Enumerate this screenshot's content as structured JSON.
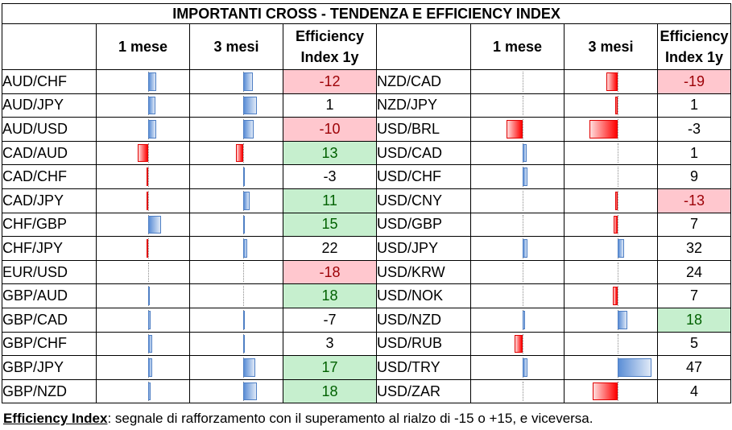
{
  "title": "IMPORTANTI CROSS - TENDENZA E EFFICIENCY INDEX",
  "headers": {
    "m1": "1 mese",
    "m3": "3 mesi",
    "eff_line1": "Efficiency",
    "eff_line2": "Index 1y"
  },
  "colors": {
    "positive_fill": "#c6efce",
    "positive_text": "#006100",
    "negative_fill": "#ffc7ce",
    "negative_text": "#9c0006",
    "bar_positive": "#5b8ed6",
    "bar_negative": "#ff0000"
  },
  "left": [
    {
      "pair": "AUD/CHF",
      "m1": 0.09,
      "m3": 0.1,
      "eff": "-12",
      "hl": "neg"
    },
    {
      "pair": "AUD/JPY",
      "m1": 0.08,
      "m3": 0.15,
      "eff": "1",
      "hl": ""
    },
    {
      "pair": "AUD/USD",
      "m1": 0.09,
      "m3": 0.11,
      "eff": "-10",
      "hl": "neg"
    },
    {
      "pair": "CAD/AUD",
      "m1": -0.11,
      "m3": -0.08,
      "eff": "13",
      "hl": "pos"
    },
    {
      "pair": "CAD/CHF",
      "m1": -0.02,
      "m3": 0.01,
      "eff": "-3",
      "hl": ""
    },
    {
      "pair": "CAD/JPY",
      "m1": -0.02,
      "m3": 0.07,
      "eff": "11",
      "hl": "pos"
    },
    {
      "pair": "CHF/GBP",
      "m1": 0.14,
      "m3": 0.01,
      "eff": "15",
      "hl": "pos"
    },
    {
      "pair": "CHF/JPY",
      "m1": -0.005,
      "m3": 0.04,
      "eff": "22",
      "hl": ""
    },
    {
      "pair": "EUR/USD",
      "m1": 0.0,
      "m3": 0.0,
      "eff": "-18",
      "hl": "neg"
    },
    {
      "pair": "GBP/AUD",
      "m1": 0.01,
      "m3": 0.0,
      "eff": "18",
      "hl": "pos"
    },
    {
      "pair": "GBP/CAD",
      "m1": 0.03,
      "m3": 0.01,
      "eff": "-7",
      "hl": ""
    },
    {
      "pair": "GBP/CHF",
      "m1": 0.04,
      "m3": 0.01,
      "eff": "3",
      "hl": ""
    },
    {
      "pair": "GBP/JPY",
      "m1": 0.04,
      "m3": 0.13,
      "eff": "17",
      "hl": "pos"
    },
    {
      "pair": "GBP/NZD",
      "m1": 0.03,
      "m3": 0.15,
      "eff": "18",
      "hl": "pos"
    }
  ],
  "right": [
    {
      "pair": "NZD/CAD",
      "m1": 0.0,
      "m3": -0.12,
      "eff": "-19",
      "hl": "neg"
    },
    {
      "pair": "NZD/JPY",
      "m1": 0.0,
      "m3": -0.03,
      "eff": "1",
      "hl": ""
    },
    {
      "pair": "USD/BRL",
      "m1": -0.17,
      "m3": -0.3,
      "eff": "-3",
      "hl": ""
    },
    {
      "pair": "USD/CAD",
      "m1": 0.04,
      "m3": 0.0,
      "eff": "1",
      "hl": ""
    },
    {
      "pair": "USD/CHF",
      "m1": 0.05,
      "m3": 0.0,
      "eff": "9",
      "hl": ""
    },
    {
      "pair": "USD/CNY",
      "m1": 0.0,
      "m3": -0.03,
      "eff": "-13",
      "hl": "neg"
    },
    {
      "pair": "USD/GBP",
      "m1": 0.0,
      "m3": -0.04,
      "eff": "7",
      "hl": ""
    },
    {
      "pair": "USD/JPY",
      "m1": 0.05,
      "m3": 0.07,
      "eff": "32",
      "hl": ""
    },
    {
      "pair": "USD/KRW",
      "m1": 0.0,
      "m3": 0.0,
      "eff": "24",
      "hl": ""
    },
    {
      "pair": "USD/NOK",
      "m1": 0.0,
      "m3": -0.05,
      "eff": "7",
      "hl": ""
    },
    {
      "pair": "USD/NZD",
      "m1": 0.03,
      "m3": 0.1,
      "eff": "18",
      "hl": "pos"
    },
    {
      "pair": "USD/RUB",
      "m1": -0.09,
      "m3": 0.0,
      "eff": "5",
      "hl": ""
    },
    {
      "pair": "USD/TRY",
      "m1": 0.05,
      "m3": 0.36,
      "eff": "47",
      "hl": ""
    },
    {
      "pair": "USD/ZAR",
      "m1": 0.0,
      "m3": -0.27,
      "eff": "4",
      "hl": ""
    }
  ],
  "footer": {
    "key": "Efficiency Index",
    "text": ": segnale di rafforzamento con il superamento al rialzo di -15 o +15, e viceversa."
  }
}
